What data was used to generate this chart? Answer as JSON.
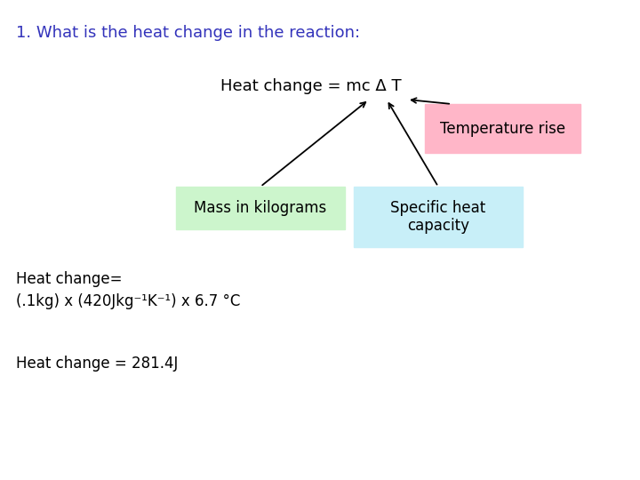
{
  "background_color": "#ffffff",
  "title_text": "1. What is the heat change in the reaction:",
  "title_color": "#3333bb",
  "title_fontsize": 13,
  "equation_text": "Heat change = mc Δ T",
  "equation_fontsize": 13,
  "box_temp_text": "Temperature rise",
  "box_temp_color": "#ffb6c8",
  "box_mass_text": "Mass in kilograms",
  "box_mass_color": "#ccf5cc",
  "box_shc_text": "Specific heat\ncapacity",
  "box_shc_color": "#c8eff8",
  "calc_line1": "Heat change=",
  "calc_line2": "(.1kg) x (420Jkg⁻¹K⁻¹) x 6.7 °C",
  "result_text": "Heat change = 281.4J",
  "fontsize_calc": 12,
  "arrow_color": "#000000"
}
